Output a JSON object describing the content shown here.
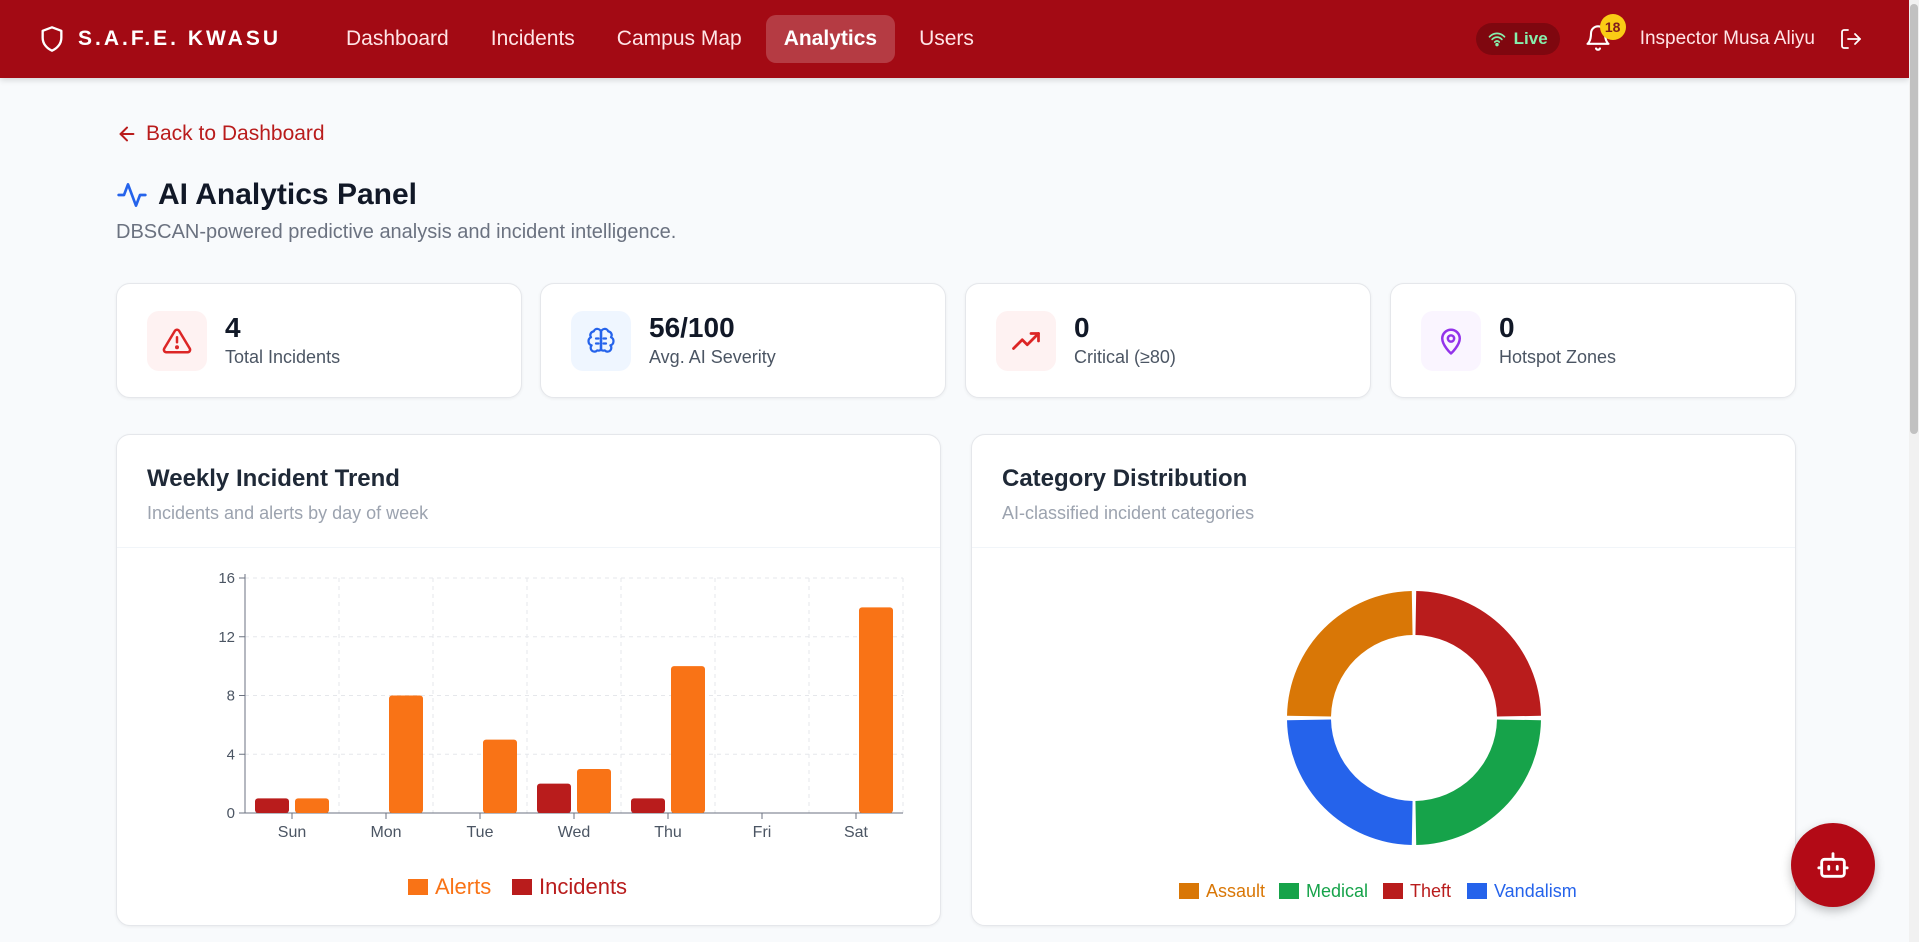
{
  "brand": {
    "name": "S.A.F.E. KWASU"
  },
  "nav": {
    "items": [
      {
        "label": "Dashboard"
      },
      {
        "label": "Incidents"
      },
      {
        "label": "Campus Map"
      },
      {
        "label": "Analytics"
      },
      {
        "label": "Users"
      }
    ],
    "active": "Analytics"
  },
  "header": {
    "live_label": "Live",
    "notification_count": "18",
    "user_name": "Inspector Musa Aliyu"
  },
  "page": {
    "back_label": "Back to Dashboard",
    "title": "AI Analytics Panel",
    "subtitle": "DBSCAN-powered predictive analysis and incident intelligence."
  },
  "stats": [
    {
      "value": "4",
      "label": "Total Incidents",
      "icon": "alert-triangle-icon",
      "color": "#dc2626"
    },
    {
      "value": "56/100",
      "label": "Avg. AI Severity",
      "icon": "brain-icon",
      "color": "#2563eb"
    },
    {
      "value": "0",
      "label": "Critical (≥80)",
      "icon": "trending-up-icon",
      "color": "#dc2626"
    },
    {
      "value": "0",
      "label": "Hotspot Zones",
      "icon": "map-pin-icon",
      "color": "#9333ea"
    }
  ],
  "weekly_panel": {
    "title": "Weekly Incident Trend",
    "subtitle": "Incidents and alerts by day of week"
  },
  "category_panel": {
    "title": "Category Distribution",
    "subtitle": "AI-classified incident categories"
  },
  "colors": {
    "brand": "#a30a14",
    "alerts": "#f97316",
    "incidents": "#b91c1c"
  },
  "chart_data": [
    {
      "type": "bar",
      "categories": [
        "Sun",
        "Mon",
        "Tue",
        "Wed",
        "Thu",
        "Fri",
        "Sat"
      ],
      "series": [
        {
          "name": "Incidents",
          "color": "#b91c1c",
          "values": [
            1,
            0,
            0,
            2,
            1,
            0,
            0
          ]
        },
        {
          "name": "Alerts",
          "color": "#f97316",
          "values": [
            1,
            8,
            5,
            3,
            10,
            0,
            14
          ]
        }
      ],
      "legend_order": [
        "Alerts",
        "Incidents"
      ],
      "yticks": [
        0,
        4,
        8,
        12,
        16
      ],
      "ylim": [
        0,
        16
      ],
      "grid": true,
      "legend": "bottom"
    },
    {
      "type": "pie",
      "donut": true,
      "labels": [
        "Assault",
        "Medical",
        "Theft",
        "Vandalism"
      ],
      "values": [
        1,
        1,
        1,
        1
      ],
      "colors": [
        "#d97706",
        "#16a34a",
        "#b91c1c",
        "#2563eb"
      ],
      "legend": "bottom"
    }
  ]
}
